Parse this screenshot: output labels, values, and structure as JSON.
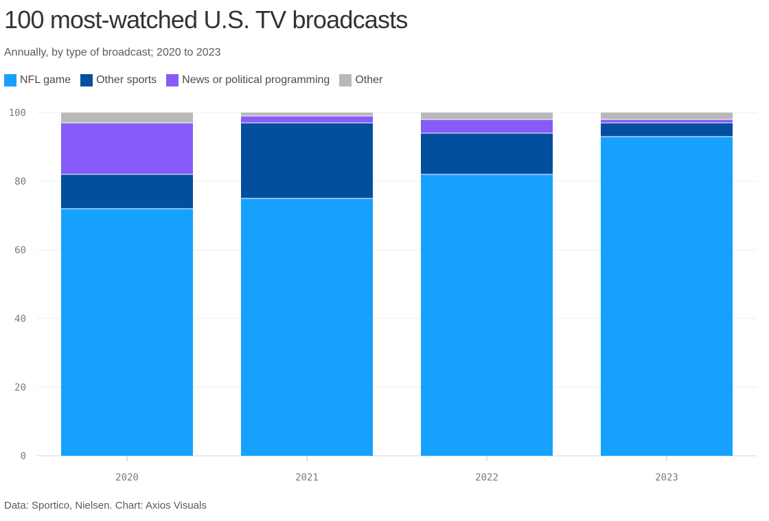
{
  "title": "100 most-watched U.S. TV broadcasts",
  "subtitle": "Annually, by type of broadcast; 2020 to 2023",
  "source": "Data: Sportico, Nielsen. Chart: Axios Visuals",
  "legend": [
    {
      "label": "NFL game",
      "color": "#16a1ff"
    },
    {
      "label": "Other sports",
      "color": "#044e9e"
    },
    {
      "label": "News or political programming",
      "color": "#855cf8"
    },
    {
      "label": "Other",
      "color": "#b9b9b9"
    }
  ],
  "chart_data": {
    "type": "bar",
    "stacked": true,
    "title": "100 most-watched U.S. TV broadcasts",
    "subtitle": "Annually, by type of broadcast; 2020 to 2023",
    "categories": [
      "2020",
      "2021",
      "2022",
      "2023"
    ],
    "series": [
      {
        "name": "NFL game",
        "color": "#16a1ff",
        "values": [
          72,
          75,
          82,
          93
        ]
      },
      {
        "name": "Other sports",
        "color": "#044e9e",
        "values": [
          10,
          22,
          12,
          4
        ]
      },
      {
        "name": "News or political programming",
        "color": "#855cf8",
        "values": [
          15,
          2,
          4,
          1
        ]
      },
      {
        "name": "Other",
        "color": "#b9b9b9",
        "values": [
          3,
          1,
          2,
          2
        ]
      }
    ],
    "ylim": [
      0,
      100
    ],
    "yticks": [
      0,
      20,
      40,
      60,
      80,
      100
    ],
    "grid": true,
    "legend_position": "top-left"
  }
}
